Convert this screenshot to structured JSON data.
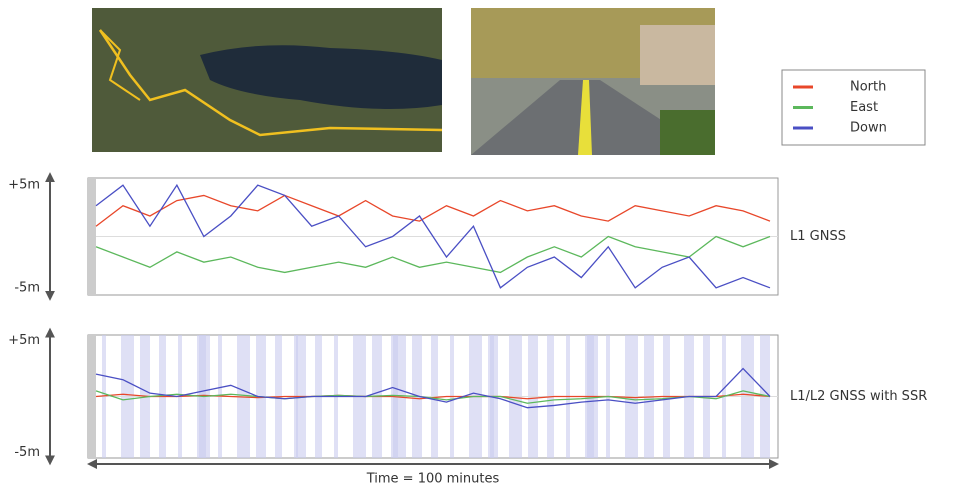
{
  "legend": {
    "series": [
      {
        "name": "North",
        "color": "#e8472a"
      },
      {
        "name": "East",
        "color": "#5cb85c"
      },
      {
        "name": "Down",
        "color": "#4a4fc4"
      }
    ]
  },
  "chart_data": [
    {
      "type": "line",
      "title": "L1 GNSS",
      "x": [
        0,
        4,
        8,
        12,
        16,
        20,
        24,
        28,
        32,
        36,
        40,
        44,
        48,
        52,
        56,
        60,
        64,
        68,
        72,
        76,
        80,
        84,
        88,
        92,
        96,
        100
      ],
      "xlim": [
        0,
        100
      ],
      "ylim": [
        -5.7,
        5.7
      ],
      "yticks": [
        {
          "value": 5,
          "label": "+5m"
        },
        {
          "value": -5,
          "label": "-5m"
        }
      ],
      "series": [
        {
          "values": [
            1,
            3,
            2,
            3.5,
            4,
            3,
            2.5,
            4,
            3,
            2,
            3.5,
            2,
            1.5,
            3,
            2,
            3.5,
            2.5,
            3,
            2,
            1.5,
            3,
            2.5,
            2,
            3,
            2.5,
            1.5
          ]
        },
        {
          "values": [
            -1,
            -2,
            -3,
            -1.5,
            -2.5,
            -2,
            -3,
            -3.5,
            -3,
            -2.5,
            -3,
            -2,
            -3,
            -2.5,
            -3,
            -3.5,
            -2,
            -1,
            -2,
            0,
            -1,
            -1.5,
            -2,
            0,
            -1,
            0
          ]
        },
        {
          "values": [
            3,
            5,
            1,
            5,
            0,
            2,
            5,
            4,
            1,
            2,
            -1,
            0,
            2,
            -2,
            1,
            -5,
            -3,
            -2,
            -4,
            -1,
            -5,
            -3,
            -2,
            -5,
            -4,
            -5
          ]
        }
      ]
    },
    {
      "type": "line",
      "title": "L1/L2 GNSS with SSR",
      "xlabel": "Time = 100 minutes",
      "x": [
        0,
        4,
        8,
        12,
        16,
        20,
        24,
        28,
        32,
        36,
        40,
        44,
        48,
        52,
        56,
        60,
        64,
        68,
        72,
        76,
        80,
        84,
        88,
        92,
        96,
        100
      ],
      "xlim": [
        0,
        100
      ],
      "ylim": [
        -5.5,
        5.5
      ],
      "yticks": [
        {
          "value": 5,
          "label": "+5m"
        },
        {
          "value": -5,
          "label": "-5m"
        }
      ],
      "series": [
        {
          "values": [
            0,
            0.2,
            0,
            0,
            0.1,
            0,
            -0.1,
            0,
            0,
            0.1,
            0,
            0,
            -0.2,
            0,
            0,
            0,
            -0.2,
            0,
            0,
            0,
            -0.1,
            0,
            0,
            0,
            0.2,
            0
          ]
        },
        {
          "values": [
            0.5,
            -0.3,
            0,
            0.2,
            0,
            0.2,
            0,
            -0.2,
            0,
            0.1,
            0,
            0.1,
            0,
            -0.3,
            0,
            0,
            -0.6,
            -0.3,
            -0.2,
            0,
            -0.3,
            -0.2,
            0,
            -0.2,
            0.5,
            0
          ]
        },
        {
          "values": [
            2,
            1.5,
            0.3,
            0,
            0.5,
            1,
            0,
            -0.2,
            0,
            0,
            0,
            0.8,
            0,
            -0.5,
            0.3,
            -0.2,
            -1,
            -0.8,
            -0.5,
            -0.3,
            -0.6,
            -0.3,
            0,
            0,
            2.5,
            0
          ]
        }
      ]
    }
  ]
}
